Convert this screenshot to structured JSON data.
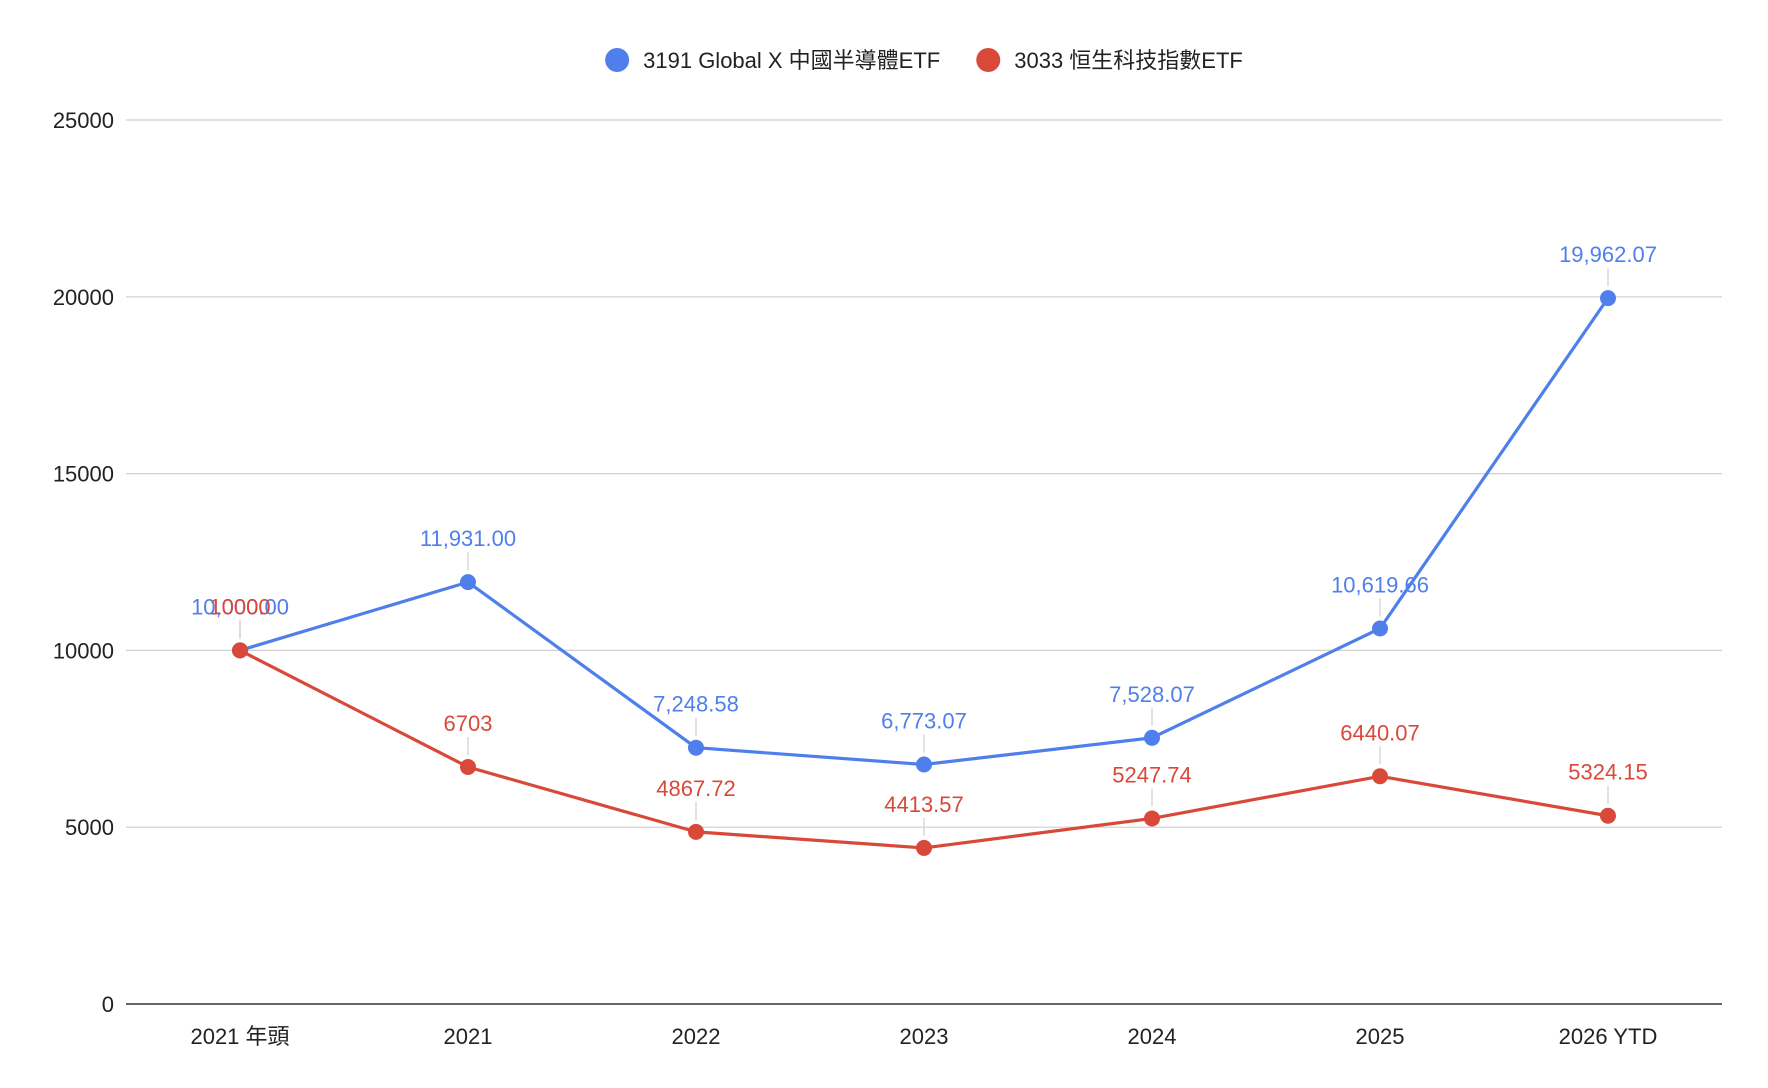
{
  "chart_data": {
    "type": "line",
    "categories": [
      "2021 年頭",
      "2021",
      "2022",
      "2023",
      "2024",
      "2025",
      "2026 YTD"
    ],
    "series": [
      {
        "name": "3191 Global X 中國半導體ETF",
        "color": "#4f7fea",
        "values": [
          10000,
          11931.0,
          7248.58,
          6773.07,
          7528.07,
          10619.66,
          19962.07
        ],
        "labels": [
          "10,000.00",
          "11,931.00",
          "7,248.58",
          "6,773.07",
          "7,528.07",
          "10,619.66",
          "19,962.07"
        ]
      },
      {
        "name": "3033 恒生科技指數ETF",
        "color": "#d9493a",
        "values": [
          10000,
          6703,
          4867.72,
          4413.57,
          5247.74,
          6440.07,
          5324.15
        ],
        "labels": [
          "10000",
          "6703",
          "4867.72",
          "4413.57",
          "5247.74",
          "6440.07",
          "5324.15"
        ]
      }
    ],
    "yticks": [
      "0",
      "5000",
      "10000",
      "15000",
      "20000",
      "25000"
    ],
    "ylim": [
      0,
      25000
    ],
    "grid": true,
    "legend_position": "top-center"
  }
}
